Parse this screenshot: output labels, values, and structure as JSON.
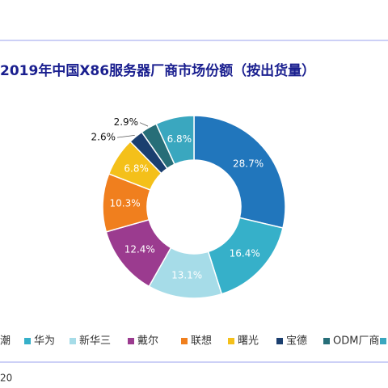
{
  "chart_data": {
    "type": "donut",
    "title": "2019年中国X86服务器厂商市场份额（按出货量）",
    "categories": [
      "潮",
      "华为",
      "新华三",
      "戴尔",
      "联想",
      "曙光",
      "宝德",
      "ODM厂商",
      null
    ],
    "values": [
      28.7,
      16.4,
      13.1,
      12.4,
      10.3,
      6.8,
      2.6,
      2.9,
      6.8
    ],
    "value_labels": [
      "28.7%",
      "16.4%",
      "13.1%",
      "12.4%",
      "10.3%",
      "6.8%",
      "2.6%",
      "2.9%",
      "6.8%"
    ],
    "colors": [
      "#2176bc",
      "#36b0c9",
      "#a6dce8",
      "#9b3b8f",
      "#f07f1e",
      "#f4c01a",
      "#1b3f6f",
      "#276e78",
      "#3aa7bf"
    ],
    "footer": "20"
  }
}
